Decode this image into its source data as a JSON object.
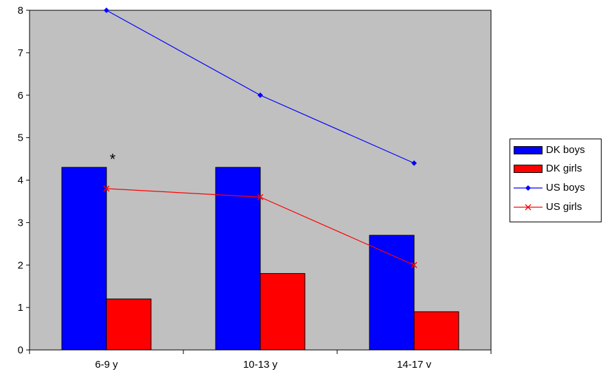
{
  "chart_data": {
    "type": "bar",
    "categories": [
      "6-9 y",
      "10-13 y",
      "14-17 v"
    ],
    "series": [
      {
        "name": "DK boys",
        "kind": "bar",
        "color": "#0000ff",
        "values": [
          4.3,
          4.3,
          2.7
        ]
      },
      {
        "name": "DK girls",
        "kind": "bar",
        "color": "#ff0000",
        "values": [
          1.2,
          1.8,
          0.9
        ]
      },
      {
        "name": "US boys",
        "kind": "line",
        "marker": "diamond",
        "color": "#0000ff",
        "values": [
          8.0,
          6.0,
          4.4
        ]
      },
      {
        "name": "US girls",
        "kind": "line",
        "marker": "x",
        "color": "#ff0000",
        "values": [
          3.8,
          3.6,
          2.0
        ]
      }
    ],
    "ylim": [
      0,
      8
    ],
    "yticks": [
      "0",
      "1",
      "2",
      "3",
      "4",
      "5",
      "6",
      "7",
      "8"
    ],
    "plot_background": "#c0c0c0",
    "grid": false,
    "legend_position": "right",
    "annotations": [
      {
        "text": "*",
        "category": "6-9 y",
        "y": 4.6
      }
    ]
  }
}
